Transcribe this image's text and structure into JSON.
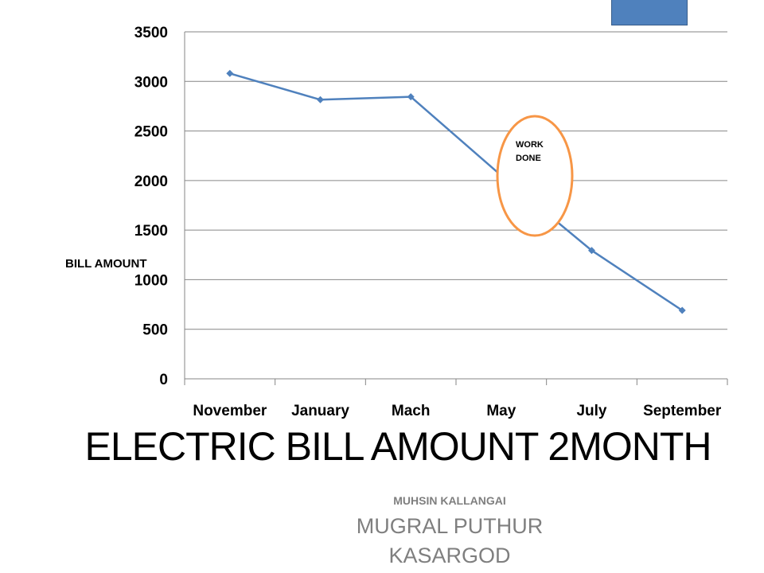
{
  "title": "ELECTRIC BILL AMOUNT 2MONTH",
  "author": "MUHSIN KALLANGAI",
  "place_line1": "MUGRAL PUTHUR",
  "place_line2": "KASARGOD",
  "callout": {
    "line1": "WORK",
    "line2": "DONE",
    "color": "#f79646"
  },
  "colors": {
    "series": "#4f81bd",
    "grid": "#868686",
    "corner_box": "#4f81bd"
  },
  "chart_data": {
    "type": "line",
    "categories": [
      "November",
      "January",
      "Mach",
      "May",
      "July",
      "September"
    ],
    "values": [
      3080,
      2815,
      2845,
      2050,
      1295,
      690
    ],
    "title": "",
    "xlabel": "",
    "ylabel": "BILL AMOUNT",
    "ylim": [
      0,
      3500
    ],
    "yticks": [
      "0",
      "500",
      "1000",
      "1500",
      "2000",
      "2500",
      "3000",
      "3500"
    ],
    "grid": true,
    "legend": "none"
  }
}
